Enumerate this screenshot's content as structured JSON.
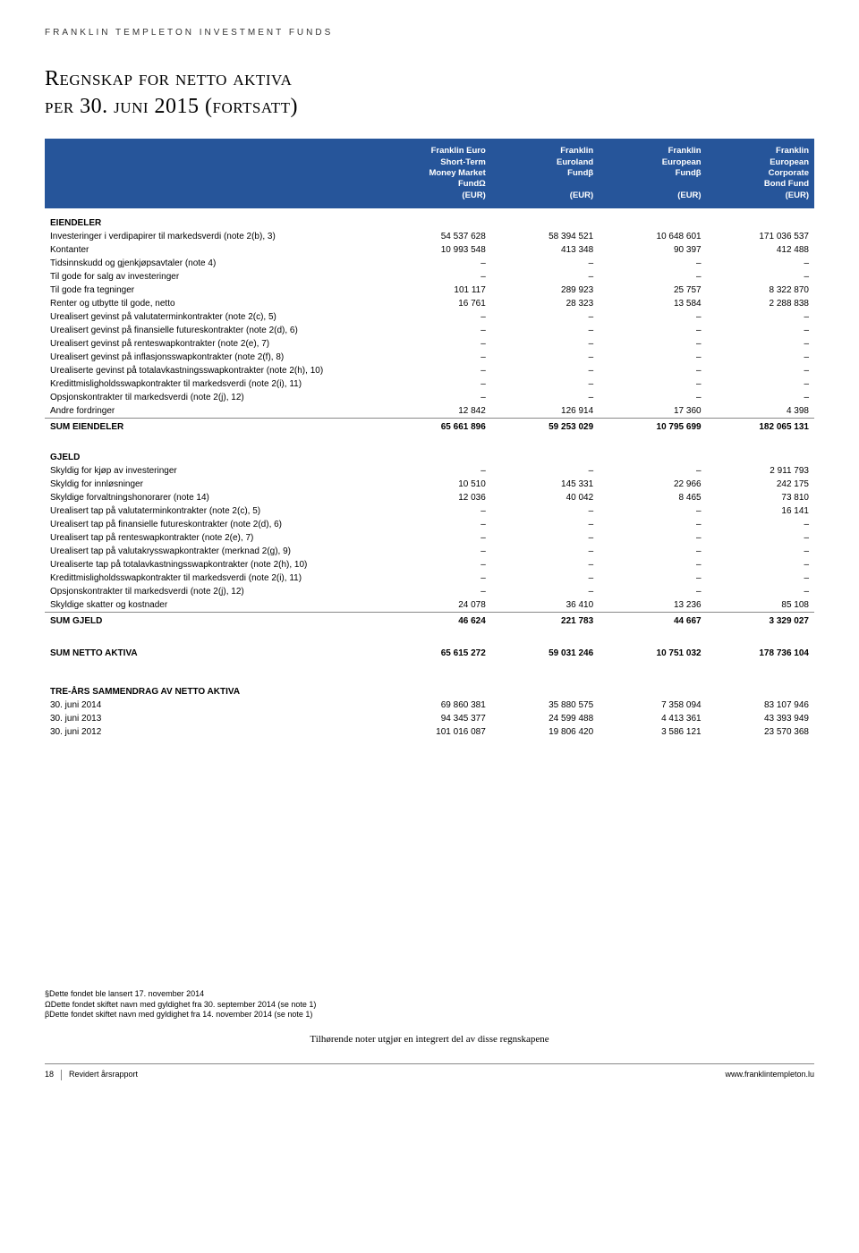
{
  "header_spaced": "FRANKLIN TEMPLETON INVESTMENT FUNDS",
  "title_line1": "Regnskap for netto aktiva",
  "title_line2": "per 30. juni 2015 (fortsatt)",
  "columns": [
    {
      "l1": "Franklin Euro",
      "l2": "Short-Term",
      "l3": "Money Market",
      "l4": "FundΩ",
      "l5": "(EUR)"
    },
    {
      "l1": "Franklin",
      "l2": "Euroland",
      "l3": "Fundβ",
      "l4": "",
      "l5": "(EUR)"
    },
    {
      "l1": "Franklin",
      "l2": "European",
      "l3": "Fundβ",
      "l4": "",
      "l5": "(EUR)"
    },
    {
      "l1": "Franklin",
      "l2": "European",
      "l3": "Corporate",
      "l4": "Bond Fund",
      "l5": "(EUR)"
    }
  ],
  "sec_eiendeler": "EIENDELER",
  "eiendeler_rows": [
    {
      "label": "Investeringer i verdipapirer til markedsverdi (note 2(b), 3)",
      "v": [
        "54 537 628",
        "58 394 521",
        "10 648 601",
        "171 036 537"
      ]
    },
    {
      "label": "Kontanter",
      "v": [
        "10 993 548",
        "413 348",
        "90 397",
        "412 488"
      ]
    },
    {
      "label": "Tidsinnskudd og gjenkjøpsavtaler (note 4)",
      "v": [
        "–",
        "–",
        "–",
        "–"
      ]
    },
    {
      "label": "Til gode for salg av investeringer",
      "v": [
        "–",
        "–",
        "–",
        "–"
      ]
    },
    {
      "label": "Til gode fra tegninger",
      "v": [
        "101 117",
        "289 923",
        "25 757",
        "8 322 870"
      ]
    },
    {
      "label": "Renter og utbytte til gode, netto",
      "v": [
        "16 761",
        "28 323",
        "13 584",
        "2 288 838"
      ]
    },
    {
      "label": "Urealisert gevinst på valutaterminkontrakter (note 2(c), 5)",
      "v": [
        "–",
        "–",
        "–",
        "–"
      ]
    },
    {
      "label": "Urealisert gevinst på finansielle futureskontrakter (note 2(d), 6)",
      "v": [
        "–",
        "–",
        "–",
        "–"
      ]
    },
    {
      "label": "Urealisert gevinst på renteswapkontrakter (note 2(e), 7)",
      "v": [
        "–",
        "–",
        "–",
        "–"
      ]
    },
    {
      "label": "Urealisert gevinst på inflasjonsswapkontrakter (note 2(f), 8)",
      "v": [
        "–",
        "–",
        "–",
        "–"
      ]
    },
    {
      "label": "Urealiserte gevinst på totalavkastningsswapkontrakter (note 2(h), 10)",
      "v": [
        "–",
        "–",
        "–",
        "–"
      ]
    },
    {
      "label": "Kredittmisligholdsswapkontrakter til markedsverdi (note 2(i), 11)",
      "v": [
        "–",
        "–",
        "–",
        "–"
      ]
    },
    {
      "label": "Opsjonskontrakter til markedsverdi (note 2(j), 12)",
      "v": [
        "–",
        "–",
        "–",
        "–"
      ]
    },
    {
      "label": "Andre fordringer",
      "v": [
        "12 842",
        "126 914",
        "17 360",
        "4 398"
      ]
    }
  ],
  "sum_eiendeler": {
    "label": "SUM EIENDELER",
    "v": [
      "65 661 896",
      "59 253 029",
      "10 795 699",
      "182 065 131"
    ]
  },
  "sec_gjeld": "GJELD",
  "gjeld_rows": [
    {
      "label": "Skyldig for kjøp av investeringer",
      "v": [
        "–",
        "–",
        "–",
        "2 911 793"
      ]
    },
    {
      "label": "Skyldig for innløsninger",
      "v": [
        "10 510",
        "145 331",
        "22 966",
        "242 175"
      ]
    },
    {
      "label": "Skyldige forvaltningshonorarer (note 14)",
      "v": [
        "12 036",
        "40 042",
        "8 465",
        "73 810"
      ]
    },
    {
      "label": "Urealisert tap på valutaterminkontrakter (note 2(c), 5)",
      "v": [
        "–",
        "–",
        "–",
        "16 141"
      ]
    },
    {
      "label": "Urealisert tap på finansielle futureskontrakter (note 2(d), 6)",
      "v": [
        "–",
        "–",
        "–",
        "–"
      ]
    },
    {
      "label": "Urealisert tap på renteswapkontrakter (note 2(e), 7)",
      "v": [
        "–",
        "–",
        "–",
        "–"
      ]
    },
    {
      "label": "Urealisert tap på valutakrysswapkontrakter (merknad 2(g), 9)",
      "v": [
        "–",
        "–",
        "–",
        "–"
      ]
    },
    {
      "label": "Urealiserte tap på totalavkastningsswapkontrakter (note 2(h), 10)",
      "v": [
        "–",
        "–",
        "–",
        "–"
      ]
    },
    {
      "label": "Kredittmisligholdsswapkontrakter til markedsverdi (note 2(i), 11)",
      "v": [
        "–",
        "–",
        "–",
        "–"
      ]
    },
    {
      "label": "Opsjonskontrakter til markedsverdi (note 2(j), 12)",
      "v": [
        "–",
        "–",
        "–",
        "–"
      ]
    },
    {
      "label": "Skyldige skatter og kostnader",
      "v": [
        "24 078",
        "36 410",
        "13 236",
        "85 108"
      ]
    }
  ],
  "sum_gjeld": {
    "label": "SUM GJELD",
    "v": [
      "46 624",
      "221 783",
      "44 667",
      "3 329 027"
    ]
  },
  "sum_netto": {
    "label": "SUM NETTO AKTIVA",
    "v": [
      "65 615 272",
      "59 031 246",
      "10 751 032",
      "178 736 104"
    ]
  },
  "sec_treaar": "TRE-ÅRS SAMMENDRAG AV NETTO AKTIVA",
  "treaar_rows": [
    {
      "label": "30. juni 2014",
      "v": [
        "69 860 381",
        "35 880 575",
        "7 358 094",
        "83 107 946"
      ]
    },
    {
      "label": "30. juni 2013",
      "v": [
        "94 345 377",
        "24 599 488",
        "4 413 361",
        "43 393 949"
      ]
    },
    {
      "label": "30. juni 2012",
      "v": [
        "101 016 087",
        "19 806 420",
        "3 586 121",
        "23 570 368"
      ]
    }
  ],
  "footnote1": "§Dette fondet ble lansert 17. november 2014",
  "footnote2": "ΩDette fondet skiftet navn med gyldighet fra 30. september 2014 (se note 1)",
  "footnote3": "βDette fondet skiftet navn med gyldighet fra 14. november 2014 (se note 1)",
  "centered_note": "Tilhørende noter utgjør en integrert del av disse regnskapene",
  "page_number": "18",
  "footer_left": "Revidert årsrapport",
  "footer_right": "www.franklintempleton.lu"
}
